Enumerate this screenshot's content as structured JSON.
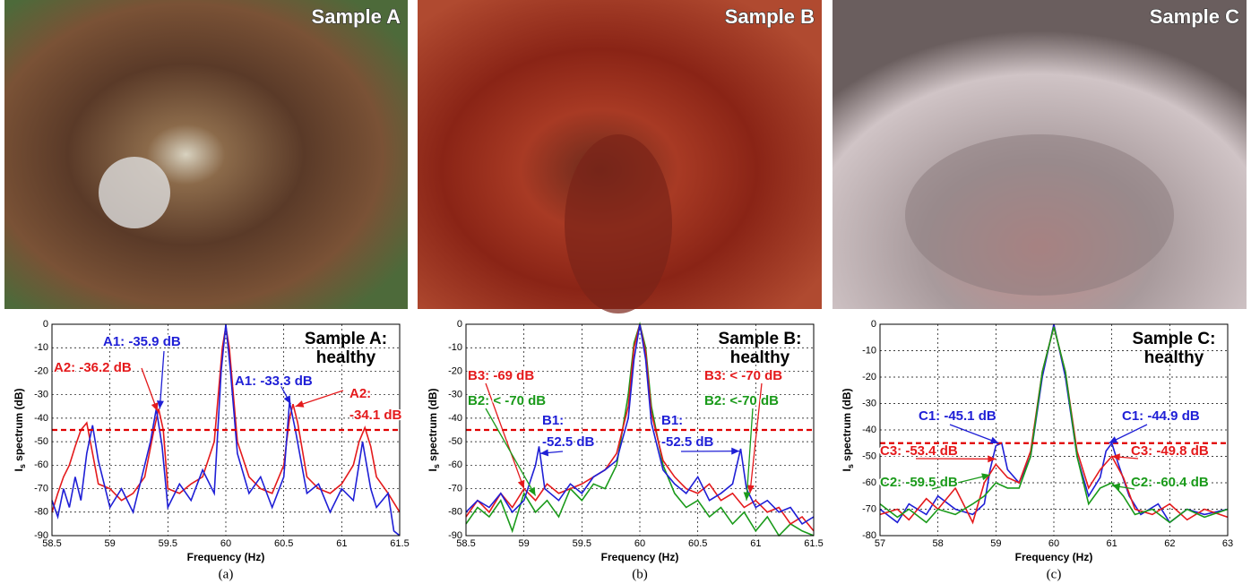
{
  "photos": [
    {
      "label": "Sample A"
    },
    {
      "label": "Sample B"
    },
    {
      "label": "Sample C"
    }
  ],
  "chart_data": [
    {
      "type": "line",
      "title_lines": [
        "Sample A:",
        "healthy"
      ],
      "xlabel": "Frequency (Hz)",
      "ylabel": "I",
      "ylabel_sub": "s",
      "ylabel_rest": " spectrum (dB)",
      "caption": "(a)",
      "xlim": [
        58.5,
        61.5
      ],
      "xticks": [
        58.5,
        59,
        59.5,
        60,
        60.5,
        61,
        61.5
      ],
      "ylim": [
        -90,
        0
      ],
      "yticks": [
        0,
        -10,
        -20,
        -30,
        -40,
        -50,
        -60,
        -70,
        -80,
        -90
      ],
      "grid": true,
      "threshold": -45,
      "threshold_color": "#e00000",
      "series": [
        {
          "color": "#e41a1c",
          "x": [
            58.5,
            58.55,
            58.6,
            58.65,
            58.7,
            58.75,
            58.8,
            58.85,
            58.9,
            59.0,
            59.1,
            59.2,
            59.3,
            59.38,
            59.42,
            59.46,
            59.5,
            59.6,
            59.7,
            59.8,
            59.9,
            59.97,
            60.0,
            60.03,
            60.1,
            60.2,
            60.3,
            60.4,
            60.5,
            60.55,
            60.58,
            60.62,
            60.7,
            60.8,
            60.9,
            61.0,
            61.1,
            61.15,
            61.2,
            61.25,
            61.3,
            61.4,
            61.5
          ],
          "values": [
            -80,
            -72,
            -65,
            -60,
            -52,
            -45,
            -42,
            -55,
            -68,
            -70,
            -75,
            -72,
            -65,
            -45,
            -36,
            -45,
            -70,
            -72,
            -68,
            -65,
            -50,
            -10,
            -1,
            -10,
            -50,
            -65,
            -70,
            -72,
            -60,
            -40,
            -34,
            -42,
            -65,
            -70,
            -72,
            -68,
            -60,
            -50,
            -44,
            -52,
            -65,
            -72,
            -80
          ]
        },
        {
          "color": "#1f1fd6",
          "x": [
            58.5,
            58.55,
            58.6,
            58.65,
            58.7,
            58.75,
            58.8,
            58.85,
            58.9,
            59.0,
            59.1,
            59.2,
            59.3,
            59.35,
            59.4,
            59.45,
            59.5,
            59.6,
            59.7,
            59.8,
            59.9,
            59.96,
            60.0,
            60.04,
            60.1,
            60.2,
            60.3,
            60.4,
            60.5,
            60.55,
            60.6,
            60.7,
            60.8,
            60.9,
            61.0,
            61.1,
            61.18,
            61.25,
            61.3,
            61.4,
            61.45,
            61.5
          ],
          "values": [
            -75,
            -82,
            -70,
            -78,
            -65,
            -75,
            -55,
            -43,
            -58,
            -78,
            -70,
            -80,
            -60,
            -50,
            -36,
            -52,
            -78,
            -68,
            -75,
            -62,
            -72,
            -20,
            0,
            -20,
            -55,
            -72,
            -65,
            -78,
            -65,
            -33,
            -45,
            -72,
            -68,
            -80,
            -70,
            -75,
            -50,
            -70,
            -78,
            -72,
            -88,
            -90
          ]
        }
      ],
      "annotations": [
        {
          "lines": [
            "A1: -35.9 dB"
          ],
          "color": "#1f1fd6",
          "point": [
            59.43,
            -36
          ]
        },
        {
          "lines": [
            "A2: -36.2 dB"
          ],
          "color": "#e41a1c",
          "point": [
            59.41,
            -37
          ]
        },
        {
          "lines": [
            "A1: -33.3 dB"
          ],
          "color": "#1f1fd6",
          "point": [
            60.56,
            -34
          ]
        },
        {
          "lines": [
            "A2:",
            "-34.1 dB"
          ],
          "color": "#e41a1c",
          "point": [
            60.6,
            -35
          ]
        }
      ]
    },
    {
      "type": "line",
      "title_lines": [
        "Sample B:",
        "healthy"
      ],
      "xlabel": "Frequency (Hz)",
      "ylabel": "I",
      "ylabel_sub": "s",
      "ylabel_rest": " spectrum (dB)",
      "caption": "(b)",
      "xlim": [
        58.5,
        61.5
      ],
      "xticks": [
        58.5,
        59,
        59.5,
        60,
        60.5,
        61,
        61.5
      ],
      "ylim": [
        -90,
        0
      ],
      "yticks": [
        0,
        -10,
        -20,
        -30,
        -40,
        -50,
        -60,
        -70,
        -80,
        -90
      ],
      "grid": true,
      "threshold": -45,
      "threshold_color": "#e00000",
      "series": [
        {
          "color": "#1a9a1a",
          "x": [
            58.5,
            58.6,
            58.7,
            58.8,
            58.9,
            59.0,
            59.1,
            59.2,
            59.3,
            59.4,
            59.5,
            59.6,
            59.7,
            59.8,
            59.9,
            59.95,
            60.0,
            60.05,
            60.1,
            60.2,
            60.3,
            60.4,
            60.5,
            60.6,
            60.7,
            60.8,
            60.9,
            61.0,
            61.1,
            61.2,
            61.3,
            61.4,
            61.5
          ],
          "values": [
            -85,
            -78,
            -82,
            -75,
            -88,
            -72,
            -80,
            -75,
            -82,
            -70,
            -75,
            -68,
            -70,
            -60,
            -30,
            -8,
            0,
            -10,
            -35,
            -60,
            -72,
            -78,
            -75,
            -82,
            -78,
            -85,
            -80,
            -88,
            -82,
            -90,
            -85,
            -88,
            -90
          ]
        },
        {
          "color": "#e41a1c",
          "x": [
            58.5,
            58.6,
            58.7,
            58.8,
            58.9,
            59.0,
            59.1,
            59.2,
            59.3,
            59.4,
            59.5,
            59.6,
            59.7,
            59.8,
            59.9,
            59.95,
            60.0,
            60.05,
            60.1,
            60.2,
            60.3,
            60.4,
            60.5,
            60.6,
            60.7,
            60.8,
            60.9,
            61.0,
            61.1,
            61.2,
            61.3,
            61.4,
            61.5
          ],
          "values": [
            -82,
            -75,
            -80,
            -72,
            -78,
            -70,
            -75,
            -68,
            -72,
            -70,
            -68,
            -65,
            -62,
            -55,
            -35,
            -10,
            0,
            -12,
            -38,
            -58,
            -65,
            -70,
            -72,
            -68,
            -75,
            -72,
            -78,
            -75,
            -80,
            -78,
            -85,
            -82,
            -88
          ]
        },
        {
          "color": "#1f1fd6",
          "x": [
            58.5,
            58.6,
            58.7,
            58.8,
            58.9,
            59.0,
            59.1,
            59.13,
            59.18,
            59.3,
            59.4,
            59.5,
            59.6,
            59.7,
            59.8,
            59.9,
            59.95,
            60.0,
            60.05,
            60.1,
            60.2,
            60.3,
            60.4,
            60.5,
            60.6,
            60.7,
            60.8,
            60.87,
            60.92,
            61.0,
            61.1,
            61.2,
            61.3,
            61.4,
            61.5
          ],
          "values": [
            -80,
            -75,
            -78,
            -72,
            -80,
            -75,
            -60,
            -52,
            -70,
            -75,
            -68,
            -72,
            -65,
            -62,
            -58,
            -40,
            -15,
            0,
            -15,
            -42,
            -62,
            -68,
            -72,
            -65,
            -75,
            -72,
            -68,
            -53,
            -70,
            -78,
            -75,
            -80,
            -78,
            -85,
            -82
          ]
        }
      ],
      "annotations": [
        {
          "lines": [
            "B3: -69 dB"
          ],
          "color": "#e41a1c",
          "point": [
            59.0,
            -70
          ]
        },
        {
          "lines": [
            "B2: < -70 dB"
          ],
          "color": "#1a9a1a",
          "point": [
            59.1,
            -73
          ]
        },
        {
          "lines": [
            "B1:",
            "-52.5 dB"
          ],
          "color": "#1f1fd6",
          "point": [
            59.14,
            -55
          ]
        },
        {
          "lines": [
            "B3: < -70 dB"
          ],
          "color": "#e41a1c",
          "point": [
            60.95,
            -72
          ]
        },
        {
          "lines": [
            "B2: <-70 dB"
          ],
          "color": "#1a9a1a",
          "point": [
            60.92,
            -75
          ]
        },
        {
          "lines": [
            "B1:",
            "-52.5 dB"
          ],
          "color": "#1f1fd6",
          "point": [
            60.86,
            -54
          ]
        }
      ]
    },
    {
      "type": "line",
      "title_lines": [
        "Sample C:",
        "healthy"
      ],
      "xlabel": "Frequency (Hz)",
      "ylabel": "I",
      "ylabel_sub": "s",
      "ylabel_rest": " spectrum (dB)",
      "caption": "(c)",
      "xlim": [
        57,
        63
      ],
      "xticks": [
        57,
        58,
        59,
        60,
        61,
        62,
        63
      ],
      "ylim": [
        -80,
        0
      ],
      "yticks": [
        0,
        -10,
        -20,
        -30,
        -40,
        -50,
        -60,
        -70,
        -80
      ],
      "grid": true,
      "threshold": -45,
      "threshold_color": "#e00000",
      "series": [
        {
          "color": "#1f1fd6",
          "x": [
            57,
            57.3,
            57.5,
            57.8,
            58,
            58.3,
            58.6,
            58.8,
            58.9,
            59.0,
            59.1,
            59.2,
            59.4,
            59.6,
            59.8,
            60.0,
            60.2,
            60.4,
            60.6,
            60.8,
            60.9,
            61.0,
            61.1,
            61.3,
            61.5,
            61.8,
            62,
            62.3,
            62.6,
            63
          ],
          "values": [
            -70,
            -75,
            -68,
            -72,
            -65,
            -70,
            -72,
            -68,
            -55,
            -46,
            -45,
            -55,
            -60,
            -50,
            -20,
            0,
            -20,
            -50,
            -65,
            -58,
            -48,
            -45,
            -52,
            -65,
            -72,
            -68,
            -75,
            -70,
            -72,
            -70
          ]
        },
        {
          "color": "#e41a1c",
          "x": [
            57,
            57.3,
            57.5,
            57.8,
            58,
            58.3,
            58.6,
            58.8,
            59.0,
            59.2,
            59.4,
            59.6,
            59.8,
            60.0,
            60.2,
            60.4,
            60.6,
            60.8,
            61.0,
            61.2,
            61.4,
            61.7,
            62,
            62.3,
            62.6,
            63
          ],
          "values": [
            -72,
            -70,
            -74,
            -66,
            -70,
            -62,
            -75,
            -60,
            -53,
            -58,
            -60,
            -48,
            -18,
            -1,
            -18,
            -48,
            -62,
            -55,
            -50,
            -58,
            -70,
            -72,
            -68,
            -74,
            -70,
            -73
          ]
        },
        {
          "color": "#1a9a1a",
          "x": [
            57,
            57.3,
            57.5,
            57.8,
            58,
            58.3,
            58.6,
            58.8,
            59.0,
            59.2,
            59.4,
            59.6,
            59.8,
            60.0,
            60.2,
            60.4,
            60.6,
            60.8,
            61.0,
            61.2,
            61.4,
            61.7,
            62,
            62.3,
            62.6,
            63
          ],
          "values": [
            -68,
            -73,
            -70,
            -75,
            -70,
            -72,
            -68,
            -65,
            -60,
            -62,
            -62,
            -50,
            -18,
            -1,
            -18,
            -50,
            -68,
            -62,
            -60,
            -65,
            -72,
            -70,
            -75,
            -70,
            -73,
            -70
          ]
        }
      ],
      "annotations": [
        {
          "lines": [
            "C1: -45.1 dB"
          ],
          "color": "#1f1fd6",
          "point": [
            59.05,
            -45
          ]
        },
        {
          "lines": [
            "C3: -53.4 dB"
          ],
          "color": "#e41a1c",
          "point": [
            59.0,
            -51
          ]
        },
        {
          "lines": [
            "C2: -59.5 dB"
          ],
          "color": "#1a9a1a",
          "point": [
            58.9,
            -57
          ]
        },
        {
          "lines": [
            "C1: -44.9 dB"
          ],
          "color": "#1f1fd6",
          "point": [
            60.95,
            -45
          ]
        },
        {
          "lines": [
            "C3: -49.8 dB"
          ],
          "color": "#e41a1c",
          "point": [
            61.0,
            -50
          ]
        },
        {
          "lines": [
            "C2: -60.4 dB"
          ],
          "color": "#1a9a1a",
          "point": [
            61.0,
            -61
          ]
        }
      ]
    }
  ]
}
